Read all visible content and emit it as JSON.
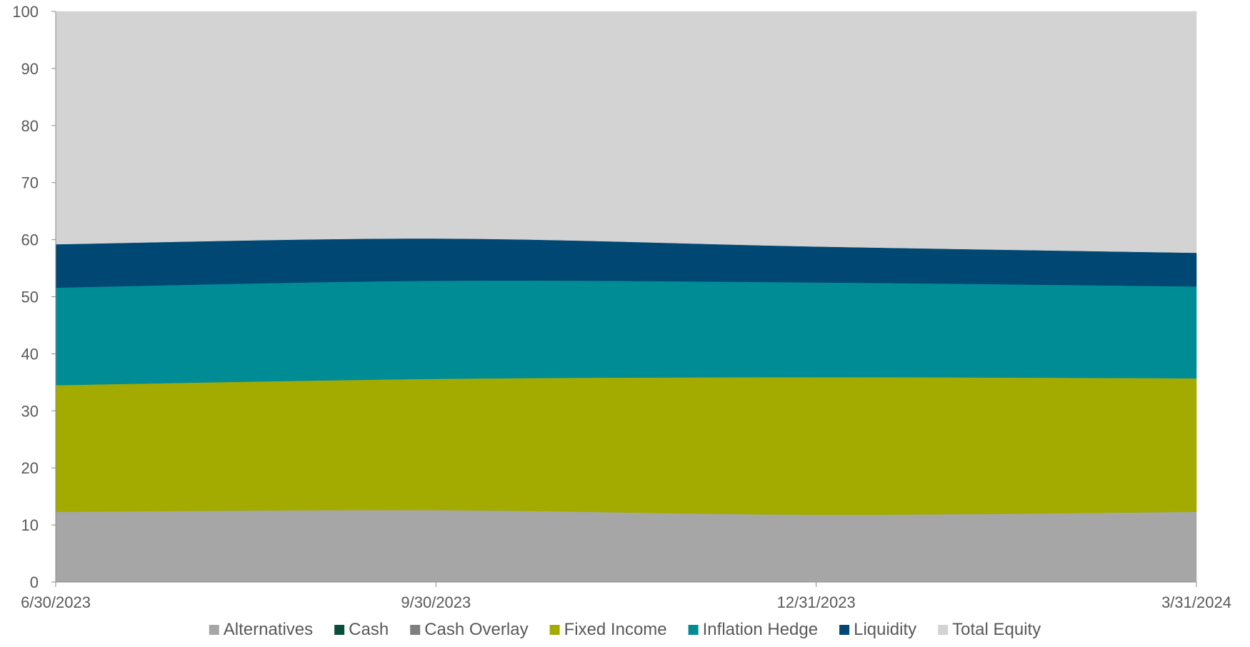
{
  "chart_data": {
    "type": "area",
    "stacked": true,
    "categories": [
      "6/30/2023",
      "9/30/2023",
      "12/31/2023",
      "3/31/2024"
    ],
    "ylim": [
      0,
      100
    ],
    "yticks": [
      0,
      10,
      20,
      30,
      40,
      50,
      60,
      70,
      80,
      90,
      100
    ],
    "grid": false,
    "legend_position": "bottom",
    "series": [
      {
        "name": "Alternatives",
        "color": "#A6A6A6",
        "values": [
          12.3,
          12.6,
          11.8,
          12.3
        ]
      },
      {
        "name": "Cash",
        "color": "#0B4D3B",
        "values": [
          0,
          0,
          0,
          0
        ]
      },
      {
        "name": "Cash Overlay",
        "color": "#7F7F7F",
        "values": [
          0,
          0,
          0,
          0
        ]
      },
      {
        "name": "Fixed Income",
        "color": "#A3AB00",
        "values": [
          22.2,
          23.0,
          24.1,
          23.4
        ]
      },
      {
        "name": "Inflation Hedge",
        "color": "#008C95",
        "values": [
          17.1,
          17.2,
          16.6,
          16.1
        ]
      },
      {
        "name": "Liquidity",
        "color": "#004874",
        "values": [
          7.6,
          7.4,
          6.3,
          5.9
        ]
      },
      {
        "name": "Total Equity",
        "color": "#D3D3D3",
        "values": [
          40.8,
          39.8,
          41.2,
          42.3
        ]
      }
    ]
  }
}
